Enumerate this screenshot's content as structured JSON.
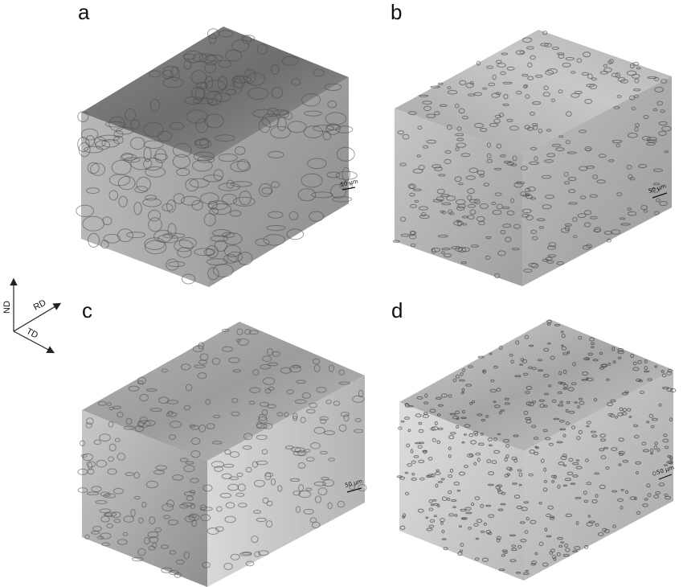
{
  "panels": [
    {
      "letter": "a",
      "scale_bar": "50 μm"
    },
    {
      "letter": "b",
      "scale_bar": "50 μm"
    },
    {
      "letter": "c",
      "scale_bar": "50 μm"
    },
    {
      "letter": "d",
      "scale_bar": "50 μm"
    }
  ],
  "axes": {
    "nd": "ND",
    "rd": "RD",
    "td": "TD"
  }
}
